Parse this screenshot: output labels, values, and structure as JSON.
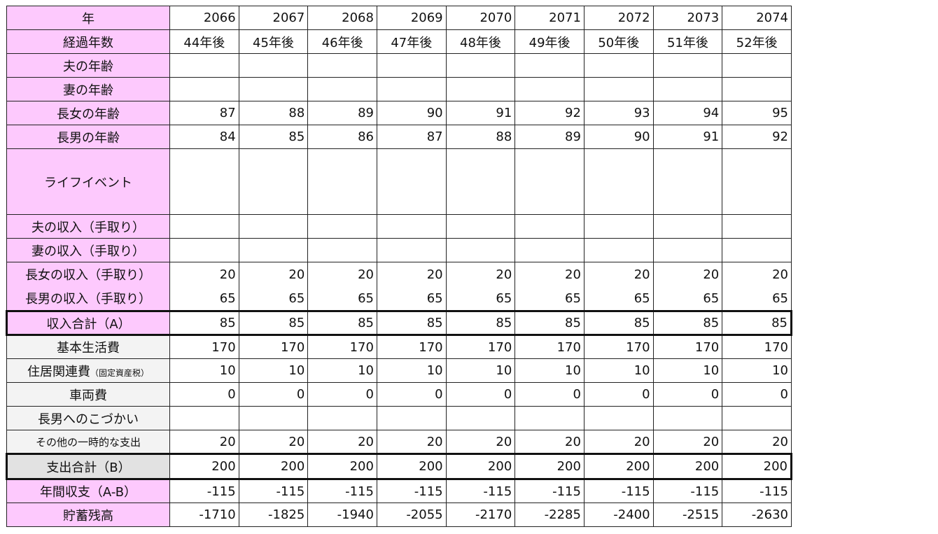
{
  "rows": [
    {
      "label": "年",
      "type": "income",
      "values": [
        "2066",
        "2067",
        "2068",
        "2069",
        "2070",
        "2071",
        "2072",
        "2073",
        "2074"
      ]
    },
    {
      "label": "経過年数",
      "type": "income",
      "center": true,
      "values": [
        "44年後",
        "45年後",
        "46年後",
        "47年後",
        "48年後",
        "49年後",
        "50年後",
        "51年後",
        "52年後"
      ]
    },
    {
      "label": "夫の年齢",
      "type": "income",
      "values": [
        "",
        "",
        "",
        "",
        "",
        "",
        "",
        "",
        ""
      ]
    },
    {
      "label": "妻の年齢",
      "type": "income",
      "values": [
        "",
        "",
        "",
        "",
        "",
        "",
        "",
        "",
        ""
      ]
    },
    {
      "label": "長女の年齢",
      "type": "income",
      "values": [
        "87",
        "88",
        "89",
        "90",
        "91",
        "92",
        "93",
        "94",
        "95"
      ]
    },
    {
      "label": "長男の年齢",
      "type": "income",
      "values": [
        "84",
        "85",
        "86",
        "87",
        "88",
        "89",
        "90",
        "91",
        "92"
      ]
    },
    {
      "label": "ライフイベント",
      "type": "income",
      "values": [
        "",
        "",
        "",
        "",
        "",
        "",
        "",
        "",
        ""
      ]
    },
    {
      "label": "夫の収入（手取り）",
      "type": "income",
      "values": [
        "",
        "",
        "",
        "",
        "",
        "",
        "",
        "",
        ""
      ]
    },
    {
      "label": "妻の収入（手取り）",
      "type": "income",
      "values": [
        "",
        "",
        "",
        "",
        "",
        "",
        "",
        "",
        ""
      ]
    },
    {
      "label": "長女の収入（手取り）",
      "type": "income",
      "values": [
        "20",
        "20",
        "20",
        "20",
        "20",
        "20",
        "20",
        "20",
        "20"
      ]
    },
    {
      "label": "長男の収入（手取り）",
      "type": "income",
      "values": [
        "65",
        "65",
        "65",
        "65",
        "65",
        "65",
        "65",
        "65",
        "65"
      ]
    },
    {
      "label": "収入合計（A）",
      "type": "income",
      "values": [
        "85",
        "85",
        "85",
        "85",
        "85",
        "85",
        "85",
        "85",
        "85"
      ]
    },
    {
      "label": "基本生活費",
      "type": "expense",
      "values": [
        "170",
        "170",
        "170",
        "170",
        "170",
        "170",
        "170",
        "170",
        "170"
      ]
    },
    {
      "label": "住居関連費",
      "sub": "（固定資産税）",
      "type": "expense",
      "values": [
        "10",
        "10",
        "10",
        "10",
        "10",
        "10",
        "10",
        "10",
        "10"
      ]
    },
    {
      "label": "車両費",
      "type": "expense",
      "values": [
        "0",
        "0",
        "0",
        "0",
        "0",
        "0",
        "0",
        "0",
        "0"
      ]
    },
    {
      "label": "長男へのこづかい",
      "type": "expense",
      "values": [
        "",
        "",
        "",
        "",
        "",
        "",
        "",
        "",
        ""
      ]
    },
    {
      "label": "その他の一時的な支出",
      "type": "expense",
      "small": true,
      "values": [
        "20",
        "20",
        "20",
        "20",
        "20",
        "20",
        "20",
        "20",
        "20"
      ]
    },
    {
      "label": "支出合計（B）",
      "type": "expense-total",
      "values": [
        "200",
        "200",
        "200",
        "200",
        "200",
        "200",
        "200",
        "200",
        "200"
      ]
    },
    {
      "label": "年間収支（A-B）",
      "type": "income",
      "values": [
        "-115",
        "-115",
        "-115",
        "-115",
        "-115",
        "-115",
        "-115",
        "-115",
        "-115"
      ]
    },
    {
      "label": "貯蓄残高",
      "type": "income",
      "values": [
        "-1710",
        "-1825",
        "-1940",
        "-2055",
        "-2170",
        "-2285",
        "-2400",
        "-2515",
        "-2630"
      ]
    }
  ],
  "colors": {
    "income_label": "#fdc9fd",
    "expense_label": "#f3f3f3",
    "expense_total_label": "#e2e2e2"
  }
}
